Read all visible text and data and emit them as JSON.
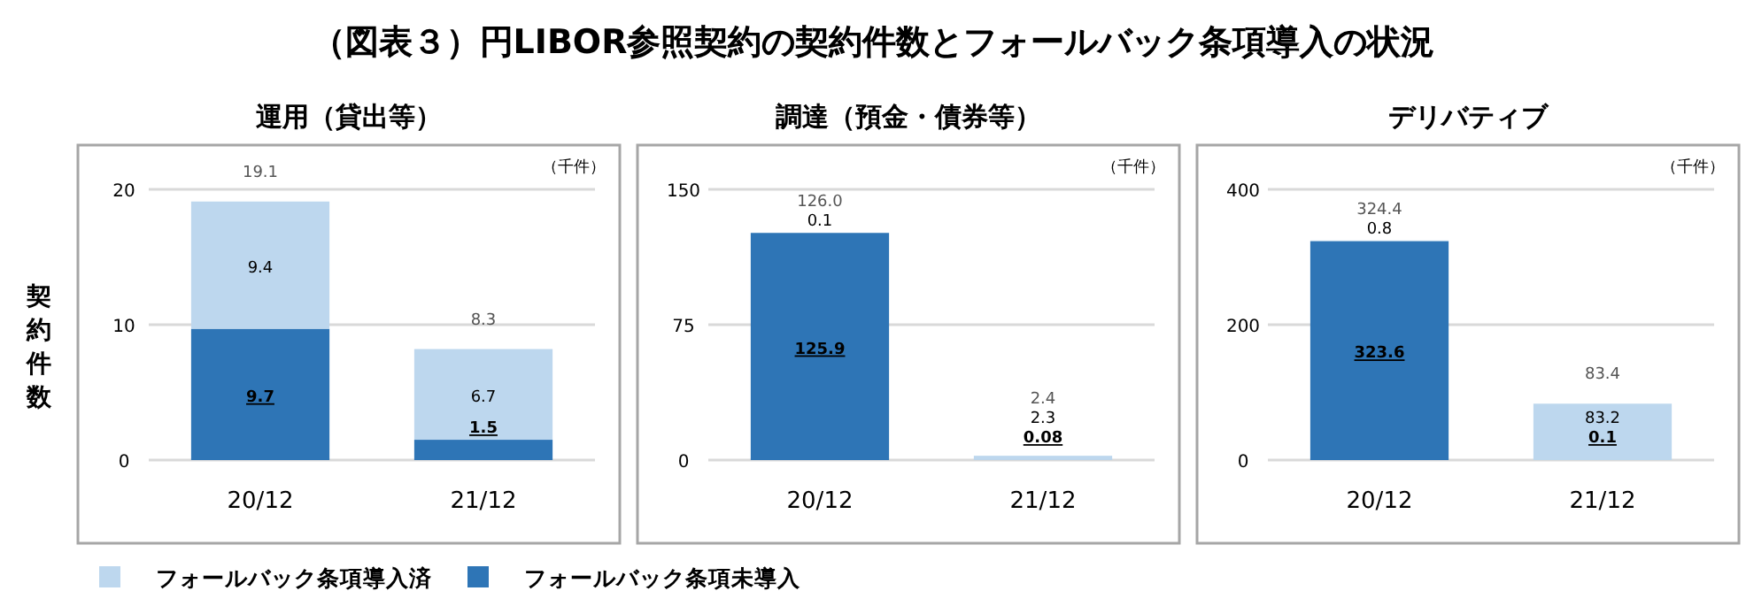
{
  "chart_data": [
    {
      "type": "bar",
      "title": "（図表３）円LIBOR参照契約の契約件数とフォールバック条項導入の状況",
      "subtitle": "運用（貸出等）",
      "ylabel": "契約件数",
      "annotations": [
        "（千件）"
      ],
      "categories": [
        "20/12",
        "21/12"
      ],
      "stacked": true,
      "ylim": [
        0,
        20
      ],
      "yticks": [
        0,
        10,
        20
      ],
      "grid": "y",
      "legend": "bottom",
      "series": [
        {
          "name": "フォールバック条項未導入",
          "color": "#2e75b6",
          "values": [
            9.7,
            1.5
          ],
          "value_labels": [
            "9.7",
            "1.5"
          ]
        },
        {
          "name": "フォールバック条項導入済",
          "color": "#bdd7ee",
          "values": [
            9.4,
            6.7
          ],
          "value_labels": [
            "9.4",
            "6.7"
          ]
        }
      ],
      "totals": [
        "19.1",
        "8.3"
      ]
    },
    {
      "type": "bar",
      "subtitle": "調達（預金・債券等）",
      "annotations": [
        "（千件）"
      ],
      "categories": [
        "20/12",
        "21/12"
      ],
      "stacked": true,
      "ylim": [
        0,
        150
      ],
      "yticks": [
        0,
        75,
        150
      ],
      "grid": "y",
      "series": [
        {
          "name": "フォールバック条項未導入",
          "color": "#2e75b6",
          "values": [
            125.9,
            0.08
          ],
          "value_labels": [
            "125.9",
            "0.08"
          ]
        },
        {
          "name": "フォールバック条項導入済",
          "color": "#bdd7ee",
          "values": [
            0.1,
            2.3
          ],
          "value_labels": [
            "0.1",
            "2.3"
          ]
        }
      ],
      "totals": [
        "126.0",
        "2.4"
      ]
    },
    {
      "type": "bar",
      "subtitle": "デリバティブ",
      "annotations": [
        "（千件）"
      ],
      "categories": [
        "20/12",
        "21/12"
      ],
      "stacked": true,
      "ylim": [
        0,
        400
      ],
      "yticks": [
        0,
        200,
        400
      ],
      "grid": "y",
      "series": [
        {
          "name": "フォールバック条項未導入",
          "color": "#2e75b6",
          "values": [
            323.6,
            0.1
          ],
          "value_labels": [
            "323.6",
            "0.1"
          ]
        },
        {
          "name": "フォールバック条項導入済",
          "color": "#bdd7ee",
          "values": [
            0.8,
            83.2
          ],
          "value_labels": [
            "0.8",
            "83.2"
          ]
        }
      ],
      "totals": [
        "324.4",
        "83.4"
      ]
    }
  ]
}
